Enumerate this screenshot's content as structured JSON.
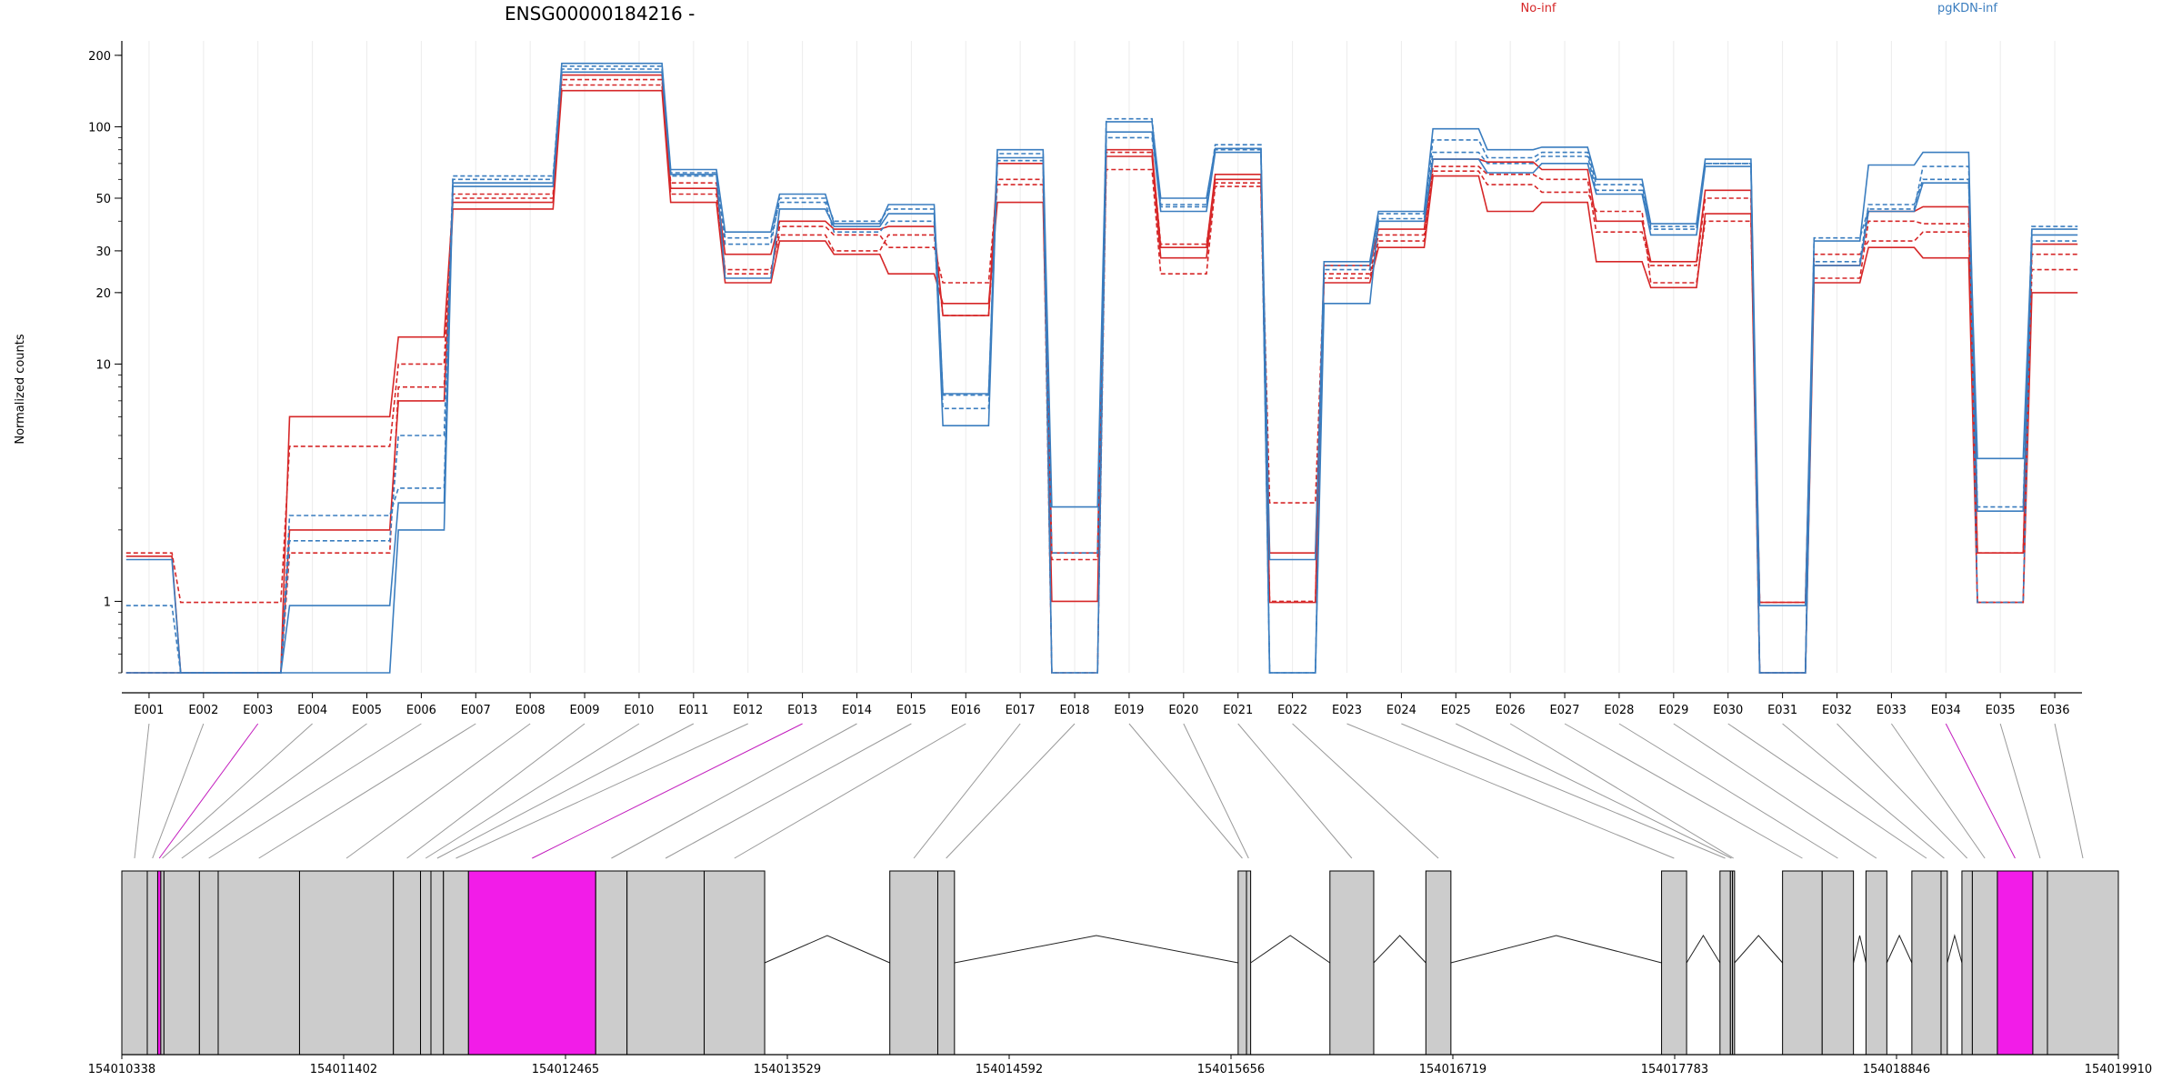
{
  "chart_data": {
    "type": "line",
    "title": "ENSG00000184216 -",
    "ylabel": "Normalized counts",
    "xlabel": "",
    "yscale": "log",
    "ylim": [
      0.5,
      230
    ],
    "yticks": [
      1,
      10,
      20,
      30,
      50,
      100,
      200
    ],
    "grid": "vertical",
    "legend_position": "top",
    "colors": {
      "No-inf": "#d62728",
      "pgKDN-inf": "#3a7dbf",
      "highlight": "#f21ce8",
      "exon": "#cccccc",
      "connector": "#999999"
    },
    "categories": [
      "E001",
      "E002",
      "E003",
      "E004",
      "E005",
      "E006",
      "E007",
      "E008",
      "E009",
      "E010",
      "E011",
      "E012",
      "E013",
      "E014",
      "E015",
      "E016",
      "E017",
      "E018",
      "E019",
      "E020",
      "E021",
      "E022",
      "E023",
      "E024",
      "E025",
      "E026",
      "E027",
      "E028",
      "E029",
      "E030",
      "E031",
      "E032",
      "E033",
      "E034",
      "E035",
      "E036"
    ],
    "series": [
      {
        "name": "No-inf",
        "group": "No-inf",
        "dash": false,
        "values": [
          1.55,
          0.5,
          0.5,
          6.0,
          6.0,
          13.0,
          48,
          48,
          165,
          165,
          55,
          29,
          40,
          37,
          38,
          16,
          70,
          1.6,
          80,
          31,
          63,
          0.99,
          26,
          37,
          73,
          71,
          66,
          40,
          27,
          54,
          0.99,
          26,
          44,
          46,
          1.6,
          32
        ]
      },
      {
        "name": "No-inf",
        "group": "No-inf",
        "dash": true,
        "values": [
          1.6,
          0.99,
          0.99,
          4.5,
          4.5,
          10.0,
          52,
          52,
          158,
          158,
          58,
          24,
          38,
          35,
          31,
          22,
          60,
          1.5,
          66,
          24,
          56,
          1.0,
          23,
          33,
          65,
          57,
          53,
          44,
          22,
          40,
          0.99,
          23,
          40,
          39,
          0.99,
          25
        ]
      },
      {
        "name": "No-inf",
        "group": "No-inf",
        "dash": false,
        "values": [
          0.5,
          0.5,
          0.5,
          2.0,
          2.0,
          7.0,
          45,
          45,
          142,
          142,
          48,
          22,
          33,
          29,
          24,
          18,
          48,
          1.0,
          75,
          28,
          60,
          1.6,
          22,
          31,
          62,
          44,
          48,
          27,
          21,
          43,
          0.5,
          22,
          31,
          28,
          0.99,
          20
        ]
      },
      {
        "name": "No-inf",
        "group": "No-inf",
        "dash": true,
        "values": [
          0.5,
          0.5,
          0.5,
          1.6,
          1.6,
          8.0,
          50,
          50,
          150,
          150,
          52,
          25,
          35,
          30,
          35,
          16,
          57,
          0.5,
          78,
          32,
          58,
          2.6,
          24,
          35,
          68,
          63,
          60,
          36,
          26,
          50,
          0.5,
          29,
          33,
          36,
          1.6,
          29
        ]
      },
      {
        "name": "pgKDN-inf",
        "group": "pgKDN-inf",
        "dash": false,
        "values": [
          1.5,
          0.5,
          0.5,
          0.96,
          0.96,
          2.6,
          58,
          58,
          185,
          185,
          66,
          36,
          52,
          39,
          47,
          7.5,
          80,
          2.5,
          105,
          50,
          81,
          1.5,
          27,
          44,
          98,
          80,
          82,
          60,
          39,
          73,
          0.96,
          33,
          69,
          78,
          2.4,
          37
        ]
      },
      {
        "name": "pgKDN-inf",
        "group": "pgKDN-inf",
        "dash": true,
        "values": [
          0.96,
          0.5,
          0.5,
          2.3,
          2.3,
          3.0,
          62,
          62,
          180,
          180,
          64,
          32,
          50,
          40,
          45,
          7.4,
          77,
          1.6,
          108,
          46,
          84,
          0.5,
          25,
          43,
          88,
          74,
          78,
          57,
          37,
          70,
          0.5,
          34,
          45,
          68,
          2.5,
          38
        ]
      },
      {
        "name": "pgKDN-inf",
        "group": "pgKDN-inf",
        "dash": false,
        "values": [
          0.5,
          0.5,
          0.5,
          0.5,
          0.5,
          2.0,
          56,
          56,
          170,
          170,
          63,
          23,
          45,
          38,
          43,
          5.5,
          74,
          0.5,
          95,
          44,
          78,
          0.5,
          18,
          40,
          73,
          64,
          70,
          52,
          35,
          68,
          0.5,
          26,
          44,
          58,
          4.0,
          35
        ]
      },
      {
        "name": "pgKDN-inf",
        "group": "pgKDN-inf",
        "dash": true,
        "values": [
          0.5,
          0.5,
          0.5,
          1.8,
          1.8,
          5.0,
          60,
          60,
          175,
          175,
          62,
          34,
          48,
          36,
          40,
          6.5,
          72,
          0.5,
          90,
          47,
          80,
          0.5,
          26,
          41,
          78,
          70,
          75,
          54,
          38,
          70,
          0.5,
          27,
          47,
          60,
          0.99,
          33
        ]
      }
    ],
    "legend": [
      "No-inf",
      "pgKDN-inf"
    ],
    "genomic_axis": {
      "tick_labels": [
        "154010338",
        "154011402",
        "154012465",
        "154013529",
        "154014592",
        "154015656",
        "154016719",
        "154017783",
        "154018846",
        "154019910"
      ],
      "range": [
        154010338,
        154019910
      ]
    },
    "exons": [
      {
        "id": "E001",
        "start": 154010338,
        "end": 154010460,
        "highlight": false
      },
      {
        "id": "E002",
        "start": 154010460,
        "end": 154010510,
        "highlight": false
      },
      {
        "id": "E003",
        "start": 154010510,
        "end": 154010525,
        "highlight": true
      },
      {
        "id": "E004",
        "start": 154010525,
        "end": 154010540,
        "highlight": false
      },
      {
        "id": "E005",
        "start": 154010540,
        "end": 154010710,
        "highlight": false
      },
      {
        "id": "E006",
        "start": 154010710,
        "end": 154010800,
        "highlight": false
      },
      {
        "id": "E007",
        "start": 154010800,
        "end": 154011190,
        "highlight": false
      },
      {
        "id": "E008",
        "start": 154011190,
        "end": 154011640,
        "highlight": false
      },
      {
        "id": "E009",
        "start": 154011640,
        "end": 154011770,
        "highlight": false
      },
      {
        "id": "E010",
        "start": 154011770,
        "end": 154011820,
        "highlight": false
      },
      {
        "id": "E011",
        "start": 154011820,
        "end": 154011880,
        "highlight": false
      },
      {
        "id": "E012",
        "start": 154011880,
        "end": 154012000,
        "highlight": false
      },
      {
        "id": "E013",
        "start": 154012000,
        "end": 154012610,
        "highlight": true
      },
      {
        "id": "E014",
        "start": 154012610,
        "end": 154012760,
        "highlight": false
      },
      {
        "id": "E015",
        "start": 154012760,
        "end": 154013130,
        "highlight": false
      },
      {
        "id": "E016",
        "start": 154013130,
        "end": 154013420,
        "highlight": false
      },
      {
        "id": "E017",
        "start": 154014020,
        "end": 154014250,
        "highlight": false
      },
      {
        "id": "E018",
        "start": 154014250,
        "end": 154014330,
        "highlight": false
      },
      {
        "id": "E019",
        "start": 154015690,
        "end": 154015730,
        "highlight": false
      },
      {
        "id": "E020",
        "start": 154015730,
        "end": 154015750,
        "highlight": false
      },
      {
        "id": "E021",
        "start": 154016130,
        "end": 154016340,
        "highlight": false
      },
      {
        "id": "E022",
        "start": 154016590,
        "end": 154016710,
        "highlight": false
      },
      {
        "id": "E023",
        "start": 154017720,
        "end": 154017840,
        "highlight": false
      },
      {
        "id": "E024",
        "start": 154018000,
        "end": 154018050,
        "highlight": false
      },
      {
        "id": "E025",
        "start": 154018050,
        "end": 154018060,
        "highlight": false
      },
      {
        "id": "E026",
        "start": 154018060,
        "end": 154018070,
        "highlight": false
      },
      {
        "id": "E027",
        "start": 154018300,
        "end": 154018490,
        "highlight": false
      },
      {
        "id": "E028",
        "start": 154018490,
        "end": 154018640,
        "highlight": false
      },
      {
        "id": "E029",
        "start": 154018700,
        "end": 154018800,
        "highlight": false
      },
      {
        "id": "E030",
        "start": 154018920,
        "end": 154019060,
        "highlight": false
      },
      {
        "id": "E031",
        "start": 154019060,
        "end": 154019090,
        "highlight": false
      },
      {
        "id": "E032",
        "start": 154019160,
        "end": 154019210,
        "highlight": false
      },
      {
        "id": "E033",
        "start": 154019210,
        "end": 154019330,
        "highlight": false
      },
      {
        "id": "E034",
        "start": 154019330,
        "end": 154019500,
        "highlight": true
      },
      {
        "id": "E035",
        "start": 154019500,
        "end": 154019570,
        "highlight": false
      },
      {
        "id": "E036",
        "start": 154019570,
        "end": 154019910,
        "highlight": false
      }
    ]
  }
}
